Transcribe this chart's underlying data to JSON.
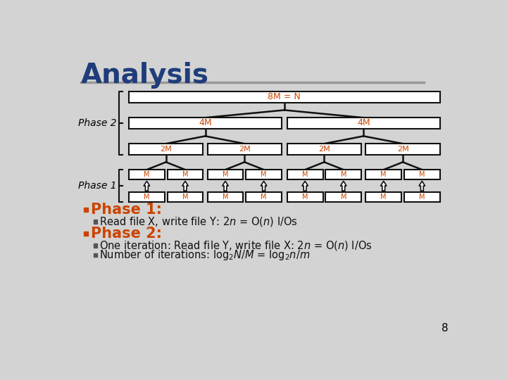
{
  "title": "Analysis",
  "title_color": "#1F3D7A",
  "bg_color": "#D3D3D3",
  "box_text_color": "#CC4400",
  "box_border_color": "#111111",
  "line_color": "#111111",
  "phase2_label": "Phase 2",
  "phase1_label": "Phase 1",
  "node_8M": "8M = N",
  "node_4M": "4M",
  "node_2M": "2M",
  "node_M": "M",
  "bullet_phase1": "Phase 1:",
  "bullet_phase2": "Phase 2:",
  "bullet_color": "#CC4400",
  "text_color": "#111111",
  "page_num": "8",
  "separator_color": "#999999",
  "brace_color": "#111111"
}
